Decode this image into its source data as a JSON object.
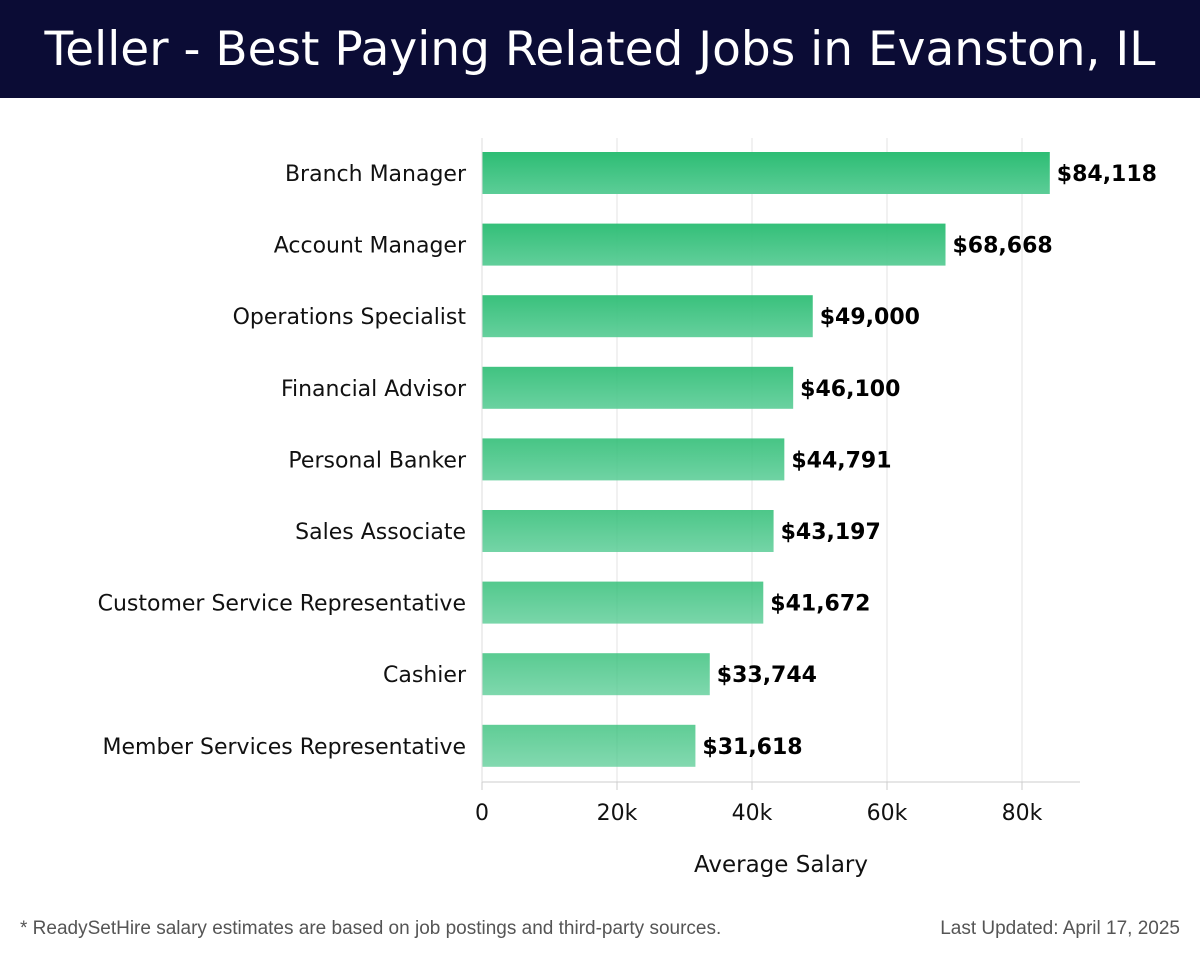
{
  "header": {
    "title": "Teller - Best Paying Related Jobs in Evanston, IL"
  },
  "footer": {
    "note": "* ReadySetHire salary estimates are based on job postings and third-party sources.",
    "updated": "Last Updated: April 17, 2025"
  },
  "colors": {
    "header_bg": "#0b0c35",
    "bar_top": "#2dbd74",
    "bar_bottom": "#5ccd97",
    "grid": "#e3e3e3"
  },
  "chart_data": {
    "type": "bar",
    "orientation": "horizontal",
    "categories": [
      "Branch Manager",
      "Account Manager",
      "Operations Specialist",
      "Financial Advisor",
      "Personal Banker",
      "Sales Associate",
      "Customer Service Representative",
      "Cashier",
      "Member Services Representative"
    ],
    "values": [
      84118,
      68668,
      49000,
      46100,
      44791,
      43197,
      41672,
      33744,
      31618
    ],
    "value_labels": [
      "$84,118",
      "$68,668",
      "$49,000",
      "$46,100",
      "$44,791",
      "$43,197",
      "$41,672",
      "$33,744",
      "$31,618"
    ],
    "xlabel": "Average Salary",
    "ylabel": "",
    "xlim": [
      0,
      88000
    ],
    "xticks": [
      0,
      20000,
      40000,
      60000,
      80000
    ],
    "xtick_labels": [
      "0",
      "20k",
      "40k",
      "60k",
      "80k"
    ],
    "grid": "vertical"
  }
}
